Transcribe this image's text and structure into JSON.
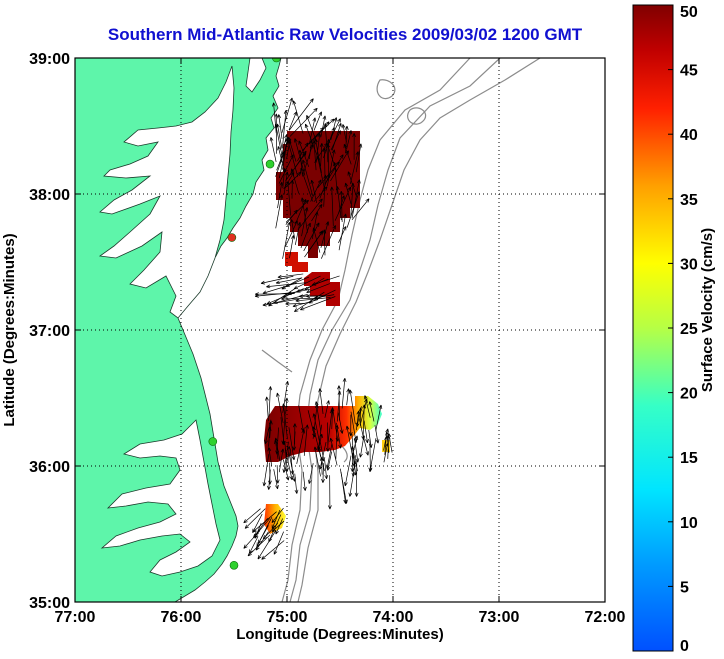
{
  "title": "Southern Mid-Atlantic Raw Velocities 2009/03/02 1200 GMT",
  "map": {
    "xlabel": "Longitude (Degrees:Minutes)",
    "ylabel": "Latitude (Degrees:Minutes)",
    "lon_range": [
      -77,
      -72
    ],
    "lat_range": [
      35,
      39
    ],
    "x_ticks": [
      {
        "value": -77,
        "label": "77:00"
      },
      {
        "value": -76,
        "label": "76:00"
      },
      {
        "value": -75,
        "label": "75:00"
      },
      {
        "value": -74,
        "label": "74:00"
      },
      {
        "value": -73,
        "label": "73:00"
      },
      {
        "value": -72,
        "label": "72:00"
      }
    ],
    "y_ticks": [
      {
        "value": 39,
        "label": "39:00"
      },
      {
        "value": 38,
        "label": "38:00"
      },
      {
        "value": 37,
        "label": "37:00"
      },
      {
        "value": 36,
        "label": "36:00"
      },
      {
        "value": 35,
        "label": "35:00"
      }
    ],
    "grid": "dotted",
    "land_color": "#5ef5aa",
    "water_color": "#ffffff",
    "bathymetry_color": "#8c8c8c",
    "vector_color": "#000000"
  },
  "colorbar": {
    "label": "Surface Velocity (cm/s)",
    "min": 0,
    "max": 50,
    "ticks": [
      {
        "value": 50,
        "label": "50"
      },
      {
        "value": 45,
        "label": "45"
      },
      {
        "value": 40,
        "label": "40"
      },
      {
        "value": 35,
        "label": "35"
      },
      {
        "value": 30,
        "label": "30"
      },
      {
        "value": 25,
        "label": "25"
      },
      {
        "value": 20,
        "label": "20"
      },
      {
        "value": 15,
        "label": "15"
      },
      {
        "value": 10,
        "label": "10"
      },
      {
        "value": 5,
        "label": "5"
      },
      {
        "value": 0,
        "label": "0"
      }
    ],
    "colormap": "jet"
  },
  "radar_sites": [
    {
      "name": "site-north",
      "lon": -75.1,
      "lat": 39.0,
      "color": "#2fd12f"
    },
    {
      "name": "site-delmarva",
      "lon": -75.16,
      "lat": 38.22,
      "color": "#2fd12f"
    },
    {
      "name": "site-eastern-shore",
      "lon": -75.52,
      "lat": 37.68,
      "color": "#e03020"
    },
    {
      "name": "site-outer-banks-north",
      "lon": -75.7,
      "lat": 36.18,
      "color": "#2fd12f"
    },
    {
      "name": "site-outer-banks-south",
      "lon": -75.5,
      "lat": 35.27,
      "color": "#2fd12f"
    }
  ],
  "velocity_regions": [
    {
      "name": "northern-block",
      "lon_min": -75.05,
      "lon_max": -74.3,
      "lat_min": 37.8,
      "lat_max": 38.45,
      "speed": 50
    },
    {
      "name": "northern-lobe",
      "lon_min": -75.05,
      "lon_max": -74.62,
      "lat_min": 37.45,
      "lat_max": 37.8,
      "speed": 50
    },
    {
      "name": "southern-block",
      "lon_min": -75.2,
      "lon_max": -74.55,
      "lat_min": 35.97,
      "lat_max": 36.45,
      "speed": 48
    },
    {
      "name": "southern-east-edge",
      "lon_min": -74.55,
      "lon_max": -74.25,
      "lat_min": 36.15,
      "lat_max": 36.5,
      "speed": 22
    }
  ]
}
